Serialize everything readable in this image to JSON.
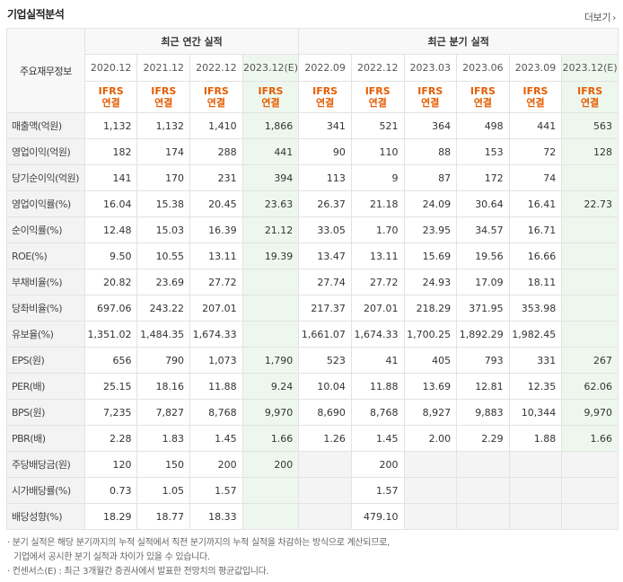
{
  "header": {
    "title": "기업실적분석",
    "more_label": "더보기",
    "more_icon": "chevron-right-icon"
  },
  "table": {
    "corner_label": "주요재무정보",
    "group_annual": "최근 연간 실적",
    "group_quarter": "최근 분기 실적",
    "periods": [
      "2020.12",
      "2021.12",
      "2022.12",
      "2023.12(E)",
      "2022.09",
      "2022.12",
      "2023.03",
      "2023.06",
      "2023.09",
      "2023.12(E)"
    ],
    "basis_line1": "IFRS",
    "basis_line2": "연결",
    "rows": [
      {
        "label": "매출액(억원)",
        "values": [
          "1,132",
          "1,132",
          "1,410",
          "1,866",
          "341",
          "521",
          "364",
          "498",
          "441",
          "563"
        ]
      },
      {
        "label": "영업이익(억원)",
        "values": [
          "182",
          "174",
          "288",
          "441",
          "90",
          "110",
          "88",
          "153",
          "72",
          "128"
        ]
      },
      {
        "label": "당기순이익(억원)",
        "values": [
          "141",
          "170",
          "231",
          "394",
          "113",
          "9",
          "87",
          "172",
          "74",
          ""
        ]
      },
      {
        "label": "영업이익률(%)",
        "values": [
          "16.04",
          "15.38",
          "20.45",
          "23.63",
          "26.37",
          "21.18",
          "24.09",
          "30.64",
          "16.41",
          "22.73"
        ]
      },
      {
        "label": "순이익률(%)",
        "values": [
          "12.48",
          "15.03",
          "16.39",
          "21.12",
          "33.05",
          "1.70",
          "23.95",
          "34.57",
          "16.71",
          ""
        ]
      },
      {
        "label": "ROE(%)",
        "values": [
          "9.50",
          "10.55",
          "13.11",
          "19.39",
          "13.47",
          "13.11",
          "15.69",
          "19.56",
          "16.66",
          ""
        ]
      },
      {
        "label": "부채비율(%)",
        "values": [
          "20.82",
          "23.69",
          "27.72",
          "",
          "27.74",
          "27.72",
          "24.93",
          "17.09",
          "18.11",
          ""
        ]
      },
      {
        "label": "당좌비율(%)",
        "values": [
          "697.06",
          "243.22",
          "207.01",
          "",
          "217.37",
          "207.01",
          "218.29",
          "371.95",
          "353.98",
          ""
        ]
      },
      {
        "label": "유보율(%)",
        "values": [
          "1,351.02",
          "1,484.35",
          "1,674.33",
          "",
          "1,661.07",
          "1,674.33",
          "1,700.25",
          "1,892.29",
          "1,982.45",
          ""
        ]
      },
      {
        "label": "EPS(원)",
        "values": [
          "656",
          "790",
          "1,073",
          "1,790",
          "523",
          "41",
          "405",
          "793",
          "331",
          "267"
        ]
      },
      {
        "label": "PER(배)",
        "values": [
          "25.15",
          "18.16",
          "11.88",
          "9.24",
          "10.04",
          "11.88",
          "13.69",
          "12.81",
          "12.35",
          "62.06"
        ]
      },
      {
        "label": "BPS(원)",
        "values": [
          "7,235",
          "7,827",
          "8,768",
          "9,970",
          "8,690",
          "8,768",
          "8,927",
          "9,883",
          "10,344",
          "9,970"
        ]
      },
      {
        "label": "PBR(배)",
        "values": [
          "2.28",
          "1.83",
          "1.45",
          "1.66",
          "1.26",
          "1.45",
          "2.00",
          "2.29",
          "1.88",
          "1.66"
        ]
      },
      {
        "label": "주당배당금(원)",
        "values": [
          "120",
          "150",
          "200",
          "200",
          "",
          "200",
          "",
          "",
          "",
          ""
        ]
      },
      {
        "label": "시가배당률(%)",
        "values": [
          "0.73",
          "1.05",
          "1.57",
          "",
          "",
          "1.57",
          "",
          "",
          "",
          ""
        ]
      },
      {
        "label": "배당성향(%)",
        "values": [
          "18.29",
          "18.77",
          "18.33",
          "",
          "",
          "479.10",
          "",
          "",
          "",
          ""
        ]
      }
    ]
  },
  "notes": {
    "line1": "· 분기 실적은 해당 분기까지의 누적 실적에서 직전 분기까지의 누적 실적을 차감하는 방식으로 계산되므로,",
    "line2": "기업에서 공시한 분기 실적과 차이가 있을 수 있습니다.",
    "line3": "· 컨센서스(E) : 최근 3개월간 증권사에서 발표한 전망치의 평균값입니다."
  }
}
